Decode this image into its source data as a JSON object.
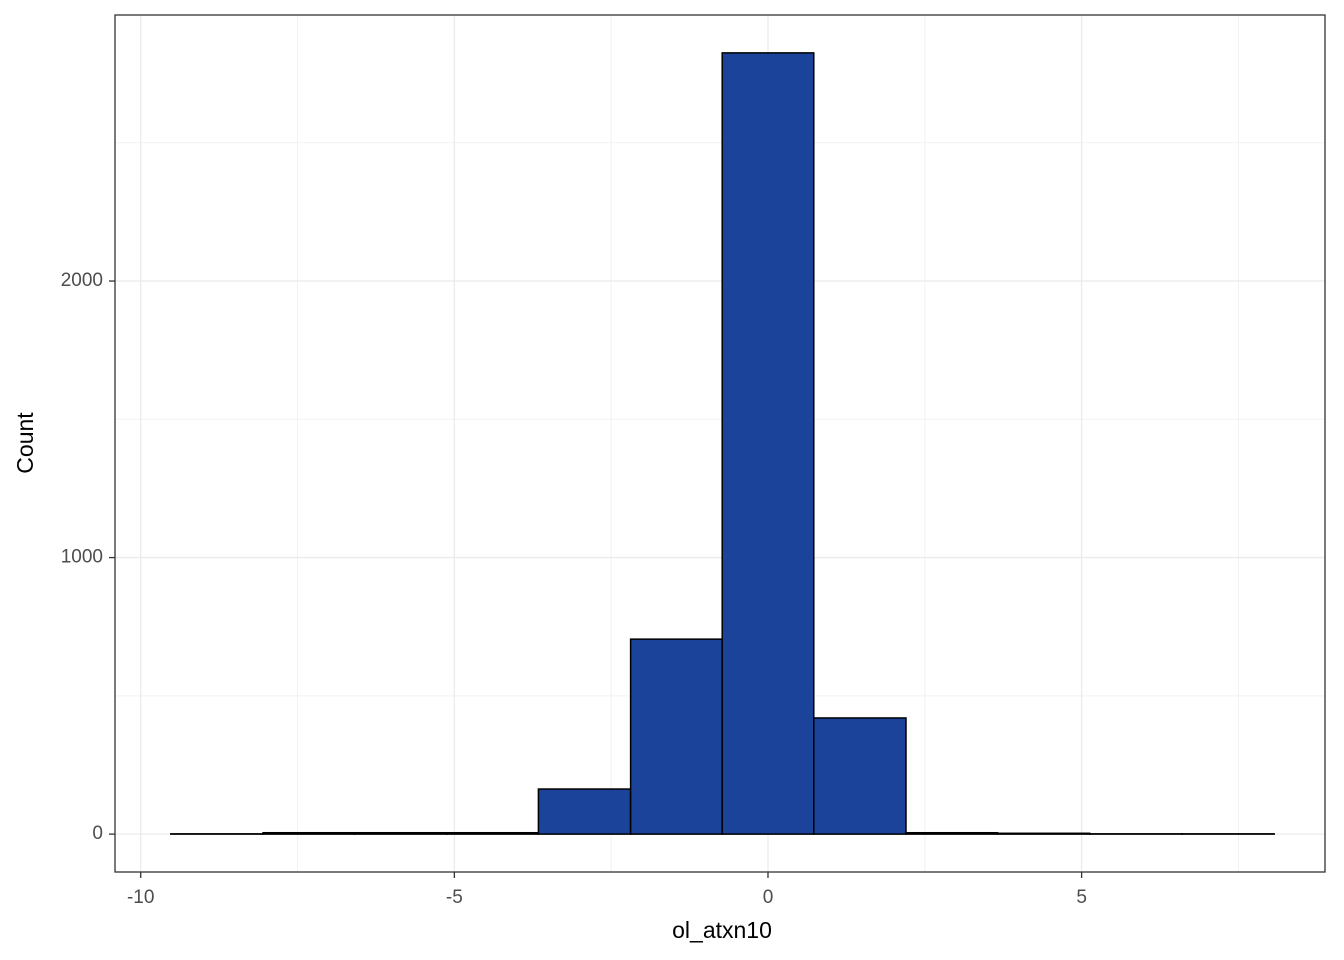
{
  "chart_data": {
    "type": "histogram",
    "x_label": "ol_atxn10",
    "y_label": "Count",
    "bins": [
      -9.52,
      -8.05,
      -6.59,
      -5.12,
      -3.66,
      -2.19,
      -0.73,
      0.73,
      2.2,
      3.66,
      5.13,
      6.6,
      8.07
    ],
    "values": [
      1,
      5,
      5,
      5,
      163,
      705,
      2825,
      420,
      5,
      3,
      1,
      1
    ],
    "color": "#1a4399",
    "xlim": [
      -10.41,
      8.88
    ],
    "xticks": [
      -10,
      -5,
      0,
      5
    ],
    "ylim": [
      -137,
      2962
    ],
    "yticks": [
      0,
      1000,
      2000
    ],
    "grid": true
  }
}
